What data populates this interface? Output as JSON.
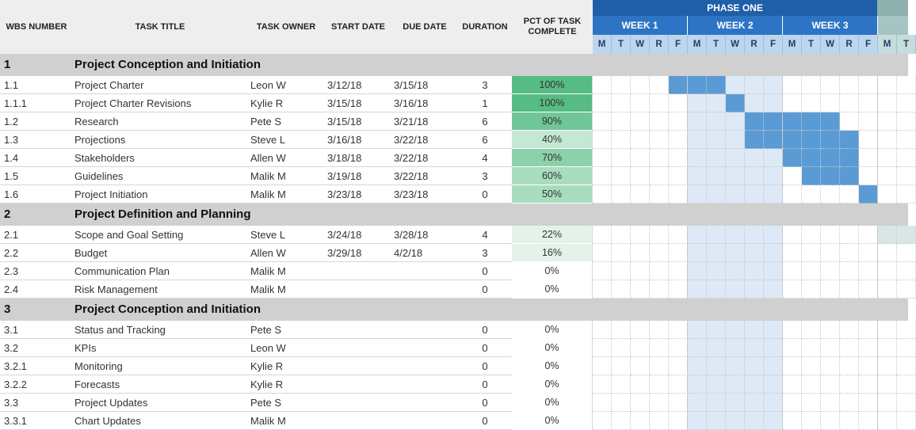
{
  "header": {
    "wbs": "WBS NUMBER",
    "title": "TASK TITLE",
    "owner": "TASK OWNER",
    "start": "START DATE",
    "due": "DUE DATE",
    "duration": "DURATION",
    "pct": "PCT OF TASK COMPLETE"
  },
  "phase": {
    "label": "PHASE ONE"
  },
  "weeks": [
    "WEEK 1",
    "WEEK 2",
    "WEEK 3"
  ],
  "day_letters": [
    "M",
    "T",
    "W",
    "R",
    "F",
    "M",
    "T",
    "W",
    "R",
    "F",
    "M",
    "T",
    "W",
    "R",
    "F",
    "M",
    "T"
  ],
  "colors": {
    "pct_levels": [
      "#ffffff",
      "#e4f3ea",
      "#c5e8d4",
      "#a8dcbf",
      "#8cd1ab",
      "#6fc697",
      "#57bb84"
    ],
    "bar": "#5b9bd5",
    "week2_shade": "#dde9f6",
    "section_bg": "#d0d0d0",
    "header_bg": "#eeeeee"
  },
  "rows": [
    {
      "kind": "section",
      "wbs": "1",
      "title": "Project Conception and Initiation"
    },
    {
      "kind": "task",
      "wbs": "1.1",
      "title": "Project Charter",
      "owner": "Leon W",
      "start": "3/12/18",
      "due": "3/15/18",
      "duration": "3",
      "pct": "100%",
      "pct_value": 100,
      "bar": [
        4,
        7
      ]
    },
    {
      "kind": "task",
      "wbs": "1.1.1",
      "title": "Project Charter Revisions",
      "owner": "Kylie R",
      "start": "3/15/18",
      "due": "3/16/18",
      "duration": "1",
      "pct": "100%",
      "pct_value": 100,
      "bar": [
        7,
        8
      ]
    },
    {
      "kind": "task",
      "wbs": "1.2",
      "title": "Research",
      "owner": "Pete S",
      "start": "3/15/18",
      "due": "3/21/18",
      "duration": "6",
      "pct": "90%",
      "pct_value": 90,
      "bar": [
        8,
        13
      ]
    },
    {
      "kind": "task",
      "wbs": "1.3",
      "title": "Projections",
      "owner": "Steve L",
      "start": "3/16/18",
      "due": "3/22/18",
      "duration": "6",
      "pct": "40%",
      "pct_value": 40,
      "bar": [
        8,
        14
      ]
    },
    {
      "kind": "task",
      "wbs": "1.4",
      "title": "Stakeholders",
      "owner": "Allen W",
      "start": "3/18/18",
      "due": "3/22/18",
      "duration": "4",
      "pct": "70%",
      "pct_value": 70,
      "bar": [
        10,
        14
      ]
    },
    {
      "kind": "task",
      "wbs": "1.5",
      "title": "Guidelines",
      "owner": "Malik M",
      "start": "3/19/18",
      "due": "3/22/18",
      "duration": "3",
      "pct": "60%",
      "pct_value": 60,
      "bar": [
        11,
        14
      ]
    },
    {
      "kind": "task",
      "wbs": "1.6",
      "title": "Project Initiation",
      "owner": "Malik M",
      "start": "3/23/18",
      "due": "3/23/18",
      "duration": "0",
      "pct": "50%",
      "pct_value": 50,
      "bar": [
        14,
        15
      ]
    },
    {
      "kind": "section",
      "wbs": "2",
      "title": "Project Definition and Planning"
    },
    {
      "kind": "task",
      "wbs": "2.1",
      "title": "Scope and Goal Setting",
      "owner": "Steve L",
      "start": "3/24/18",
      "due": "3/28/18",
      "duration": "4",
      "pct": "22%",
      "pct_value": 22,
      "bar": null
    },
    {
      "kind": "task",
      "wbs": "2.2",
      "title": "Budget",
      "owner": "Allen W",
      "start": "3/29/18",
      "due": "4/2/18",
      "duration": "3",
      "pct": "16%",
      "pct_value": 16,
      "bar": null
    },
    {
      "kind": "task",
      "wbs": "2.3",
      "title": "Communication Plan",
      "owner": "Malik M",
      "start": "",
      "due": "",
      "duration": "0",
      "pct": "0%",
      "pct_value": 0,
      "bar": null
    },
    {
      "kind": "task",
      "wbs": "2.4",
      "title": "Risk Management",
      "owner": "Malik M",
      "start": "",
      "due": "",
      "duration": "0",
      "pct": "0%",
      "pct_value": 0,
      "bar": null
    },
    {
      "kind": "section",
      "wbs": "3",
      "title": "Project Conception and Initiation"
    },
    {
      "kind": "task",
      "wbs": "3.1",
      "title": "Status and Tracking",
      "owner": "Pete S",
      "start": "",
      "due": "",
      "duration": "0",
      "pct": "0%",
      "pct_value": 0,
      "bar": null
    },
    {
      "kind": "task",
      "wbs": "3.2",
      "title": "KPIs",
      "owner": "Leon W",
      "start": "",
      "due": "",
      "duration": "0",
      "pct": "0%",
      "pct_value": 0,
      "bar": null
    },
    {
      "kind": "task",
      "wbs": "3.2.1",
      "title": "Monitoring",
      "owner": "Kylie R",
      "start": "",
      "due": "",
      "duration": "0",
      "pct": "0%",
      "pct_value": 0,
      "bar": null
    },
    {
      "kind": "task",
      "wbs": "3.2.2",
      "title": "Forecasts",
      "owner": "Kylie R",
      "start": "",
      "due": "",
      "duration": "0",
      "pct": "0%",
      "pct_value": 0,
      "bar": null
    },
    {
      "kind": "task",
      "wbs": "3.3",
      "title": "Project Updates",
      "owner": "Pete S",
      "start": "",
      "due": "",
      "duration": "0",
      "pct": "0%",
      "pct_value": 0,
      "bar": null
    },
    {
      "kind": "task",
      "wbs": "3.3.1",
      "title": "Chart Updates",
      "owner": "Malik M",
      "start": "",
      "due": "",
      "duration": "0",
      "pct": "0%",
      "pct_value": 0,
      "bar": null
    }
  ]
}
